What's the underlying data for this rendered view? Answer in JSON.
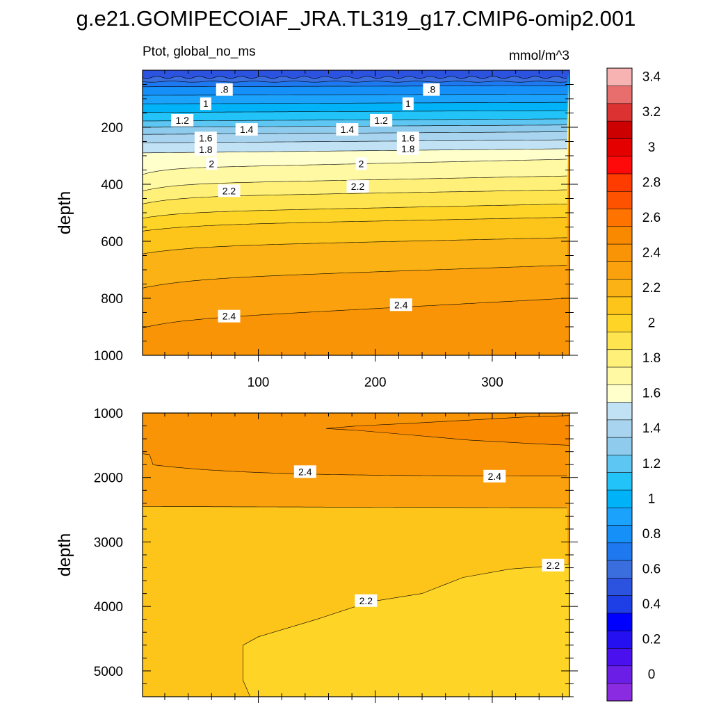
{
  "title": "g.e21.GOMIPECOIAF_JRA.TL319_g17.CMIP6-omip2.001",
  "panel_left_label": "Ptot, global_no_ms",
  "panel_right_label": "mmol/m^3",
  "colors": {
    "levels_ascending": [
      "#8a2be2",
      "#6b1fe6",
      "#4a10ee",
      "#2410f0",
      "#0000ff",
      "#1f3fe6",
      "#2c52e0",
      "#3a6ede",
      "#1e78ef",
      "#1690f9",
      "#1aa2fc",
      "#00b2f8",
      "#22c3f8",
      "#5ec6f2",
      "#8ecbec",
      "#a8d4ef",
      "#c0e2f4",
      "#ffffcc",
      "#fff9a3",
      "#fff07a",
      "#fee54f",
      "#fed426",
      "#fdc41a",
      "#fbb214",
      "#faa10d",
      "#f99406",
      "#f98a00",
      "#ff7300",
      "#ff5200",
      "#ff3c00",
      "#ff0a0a",
      "#e50000",
      "#cc0000",
      "#dc3232",
      "#e86e6e",
      "#f7b2b2"
    ]
  },
  "chart_data": [
    {
      "type": "contour",
      "panel": "upper",
      "x_ticks": [
        "100",
        "200",
        "300"
      ],
      "xlim": [
        1,
        366
      ],
      "ylabel": "depth",
      "y_ticks": [
        "200",
        "400",
        "600",
        "800",
        "1000"
      ],
      "ylim": [
        0,
        1000
      ],
      "y_reversed": true,
      "contour_labels": [
        ".8",
        "1",
        "1.2",
        "1.4",
        "1.6",
        "1.8",
        "2",
        "2.2",
        "2.4",
        ".8",
        "1",
        "1.2",
        "1.4",
        "1.6",
        "1.8",
        "2",
        "2.2",
        "2.4"
      ],
      "contour_levels": [
        0.8,
        1.0,
        1.2,
        1.4,
        1.6,
        1.8,
        2.0,
        2.2,
        2.4
      ],
      "label_positions": [
        [
          71,
          70
        ],
        [
          55,
          120
        ],
        [
          35,
          178
        ],
        [
          90,
          210
        ],
        [
          55,
          240
        ],
        [
          55,
          280
        ],
        [
          60,
          330
        ],
        [
          75,
          425
        ],
        [
          75,
          865
        ],
        [
          248,
          70
        ],
        [
          228,
          120
        ],
        [
          205,
          178
        ],
        [
          176,
          210
        ],
        [
          228,
          240
        ],
        [
          228,
          278
        ],
        [
          188,
          330
        ],
        [
          185,
          410
        ],
        [
          222,
          825
        ]
      ]
    },
    {
      "type": "contour",
      "panel": "lower",
      "ylabel": "depth",
      "y_ticks": [
        "1000",
        "2000",
        "3000",
        "4000",
        "5000"
      ],
      "ylim": [
        1000,
        5400
      ],
      "y_reversed": true,
      "contour_labels": [
        "2.4",
        "2.4",
        "2.2",
        "2.2"
      ],
      "contour_levels": [
        2.2,
        2.4,
        2.6
      ],
      "label_positions": [
        [
          140,
          1920
        ],
        [
          302,
          1990
        ],
        [
          192,
          3920
        ],
        [
          352,
          3370
        ]
      ]
    }
  ],
  "colorbar": {
    "labels": [
      "3.4",
      "3.2",
      "3",
      "2.8",
      "2.6",
      "2.4",
      "2.2",
      "2",
      "1.8",
      "1.6",
      "1.4",
      "1.2",
      "1",
      "0.8",
      "0.6",
      "0.4",
      "0.2",
      "0"
    ],
    "label_values": [
      3.4,
      3.2,
      3.0,
      2.8,
      2.6,
      2.4,
      2.2,
      2.0,
      1.8,
      1.6,
      1.4,
      1.2,
      1.0,
      0.8,
      0.6,
      0.4,
      0.2,
      0.0
    ]
  }
}
